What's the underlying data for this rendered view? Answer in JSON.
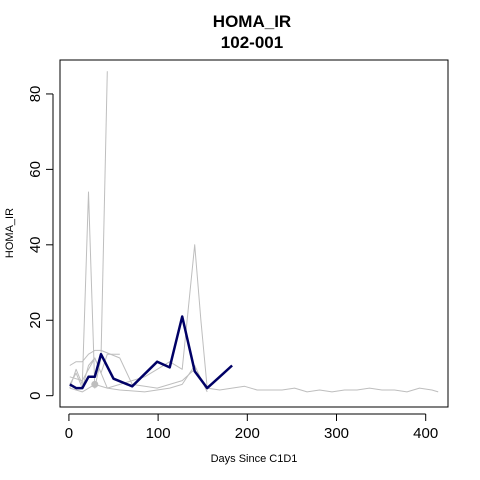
{
  "chart_data": {
    "type": "line",
    "title": "HOMA_IR",
    "subtitle": "102-001",
    "xlabel": "Days Since C1D1",
    "ylabel": "HOMA_IR",
    "xlim": [
      -10,
      425
    ],
    "ylim": [
      -3,
      89
    ],
    "x_ticks": [
      0,
      100,
      200,
      300,
      400
    ],
    "y_ticks": [
      0,
      20,
      40,
      60,
      80
    ],
    "grid": false,
    "legend": "none",
    "highlight_color": "#000066",
    "background_color": "#bebebe",
    "highlight_series": {
      "x": [
        1,
        8,
        15,
        22,
        29,
        36,
        50,
        71,
        99,
        113,
        127,
        141,
        155,
        169,
        183
      ],
      "y": [
        3,
        2,
        2,
        5,
        5,
        11,
        4.5,
        2.5,
        9,
        7.5,
        21,
        6.5,
        2,
        5,
        8
      ]
    },
    "background_series": [
      {
        "x": [
          1,
          8,
          15,
          22,
          29,
          36,
          43
        ],
        "y": [
          2,
          7,
          3,
          54,
          2,
          10,
          86
        ]
      },
      {
        "x": [
          1,
          15,
          29,
          43,
          57,
          71,
          85,
          99,
          113,
          127,
          141,
          148,
          155,
          169,
          183,
          197,
          211,
          225,
          239,
          253,
          267,
          281,
          295,
          309,
          323,
          337,
          351,
          365,
          379,
          393,
          407,
          414
        ],
        "y": [
          5,
          4,
          10,
          2,
          3,
          4,
          5,
          7,
          9,
          7,
          40,
          20,
          2,
          1.5,
          2,
          2.5,
          1.5,
          1.5,
          1.5,
          2,
          1,
          1.5,
          1,
          1.5,
          1.5,
          2,
          1.5,
          1.5,
          1,
          2,
          1.5,
          1
        ]
      },
      {
        "x": [
          1,
          8,
          15,
          22,
          29,
          36,
          57,
          71,
          99,
          127,
          141
        ],
        "y": [
          8,
          9,
          9,
          11,
          12,
          12,
          10,
          3,
          2,
          4,
          7
        ]
      },
      {
        "x": [
          1,
          8,
          15,
          22,
          29,
          36,
          43,
          57
        ],
        "y": [
          3,
          6,
          2,
          8,
          10,
          6,
          11,
          11
        ]
      },
      {
        "x": [
          1,
          15,
          29,
          43,
          57,
          85,
          113,
          127,
          141,
          155
        ],
        "y": [
          2,
          1,
          3,
          2,
          1.5,
          1,
          2,
          3,
          8,
          1
        ]
      }
    ],
    "markers": [
      {
        "x": 29,
        "y": 3
      }
    ]
  }
}
